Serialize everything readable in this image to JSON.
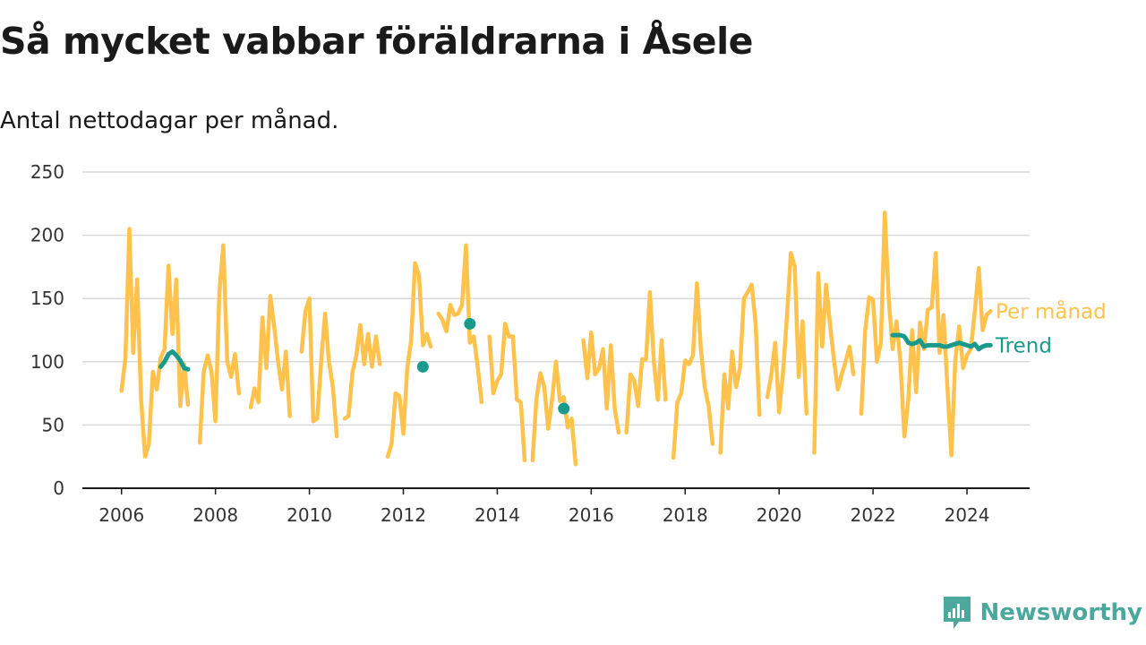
{
  "header": {
    "title": "Så mycket vabbar föräldrarna i Åsele",
    "subtitle": "Antal nettodagar per månad."
  },
  "brand": {
    "name": "Newsworthy",
    "color": "#4aa89c"
  },
  "chart_data": {
    "type": "line",
    "x_type": "date",
    "xlim": [
      "2005-03",
      "2025-05"
    ],
    "ylim": [
      0,
      250
    ],
    "yticks": [
      0,
      50,
      100,
      150,
      200,
      250
    ],
    "xticks": [
      "2006",
      "2008",
      "2010",
      "2012",
      "2014",
      "2016",
      "2018",
      "2020",
      "2022",
      "2024"
    ],
    "grid": true,
    "legend": "labels at line ends, right",
    "series": [
      {
        "name": "Per månad",
        "color": "#ffc34d",
        "style": "line",
        "segments": [
          [
            [
              "2006-01",
              77
            ],
            [
              "2006-02",
              103
            ],
            [
              "2006-03",
              205
            ],
            [
              "2006-04",
              107
            ],
            [
              "2006-05",
              165
            ],
            [
              "2006-06",
              70
            ],
            [
              "2006-07",
              25
            ],
            [
              "2006-08",
              35
            ],
            [
              "2006-09",
              92
            ],
            [
              "2006-10",
              78
            ],
            [
              "2006-11",
              103
            ],
            [
              "2006-12",
              110
            ],
            [
              "2007-01",
              176
            ],
            [
              "2007-02",
              122
            ],
            [
              "2007-03",
              165
            ],
            [
              "2007-04",
              65
            ],
            [
              "2007-05",
              98
            ],
            [
              "2007-06",
              66
            ]
          ],
          [
            [
              "2007-09",
              36
            ],
            [
              "2007-10",
              92
            ],
            [
              "2007-11",
              105
            ],
            [
              "2007-12",
              92
            ],
            [
              "2008-01",
              53
            ],
            [
              "2008-02",
              155
            ],
            [
              "2008-03",
              192
            ],
            [
              "2008-04",
              100
            ],
            [
              "2008-05",
              88
            ],
            [
              "2008-06",
              106
            ],
            [
              "2008-07",
              75
            ]
          ],
          [
            [
              "2008-10",
              64
            ],
            [
              "2008-11",
              79
            ],
            [
              "2008-12",
              68
            ],
            [
              "2009-01",
              135
            ],
            [
              "2009-02",
              95
            ],
            [
              "2009-03",
              152
            ],
            [
              "2009-04",
              128
            ],
            [
              "2009-05",
              100
            ],
            [
              "2009-06",
              78
            ],
            [
              "2009-07",
              108
            ],
            [
              "2009-08",
              57
            ]
          ],
          [
            [
              "2009-11",
              108
            ],
            [
              "2009-12",
              140
            ],
            [
              "2010-01",
              150
            ],
            [
              "2010-02",
              53
            ],
            [
              "2010-03",
              55
            ],
            [
              "2010-04",
              100
            ],
            [
              "2010-05",
              138
            ],
            [
              "2010-06",
              100
            ],
            [
              "2010-07",
              80
            ],
            [
              "2010-08",
              41
            ]
          ],
          [
            [
              "2010-10",
              55
            ],
            [
              "2010-11",
              57
            ],
            [
              "2010-12",
              92
            ],
            [
              "2011-01",
              105
            ],
            [
              "2011-02",
              129
            ],
            [
              "2011-03",
              98
            ],
            [
              "2011-04",
              122
            ],
            [
              "2011-05",
              96
            ],
            [
              "2011-06",
              120
            ],
            [
              "2011-07",
              98
            ]
          ],
          [
            [
              "2011-09",
              25
            ],
            [
              "2011-10",
              35
            ],
            [
              "2011-11",
              75
            ],
            [
              "2011-12",
              73
            ],
            [
              "2012-01",
              43
            ],
            [
              "2012-02",
              95
            ],
            [
              "2012-03",
              117
            ],
            [
              "2012-04",
              178
            ],
            [
              "2012-05",
              168
            ],
            [
              "2012-06",
              113
            ],
            [
              "2012-07",
              122
            ],
            [
              "2012-08",
              112
            ]
          ],
          [
            [
              "2012-10",
              138
            ],
            [
              "2012-11",
              133
            ],
            [
              "2012-12",
              124
            ],
            [
              "2013-01",
              145
            ],
            [
              "2013-02",
              137
            ],
            [
              "2013-03",
              138
            ],
            [
              "2013-04",
              145
            ],
            [
              "2013-05",
              192
            ],
            [
              "2013-06",
              115
            ],
            [
              "2013-07",
              120
            ],
            [
              "2013-08",
              96
            ],
            [
              "2013-09",
              68
            ]
          ],
          [
            [
              "2013-11",
              120
            ],
            [
              "2013-12",
              75
            ],
            [
              "2014-01",
              85
            ],
            [
              "2014-02",
              90
            ],
            [
              "2014-03",
              130
            ],
            [
              "2014-04",
              120
            ],
            [
              "2014-05",
              120
            ],
            [
              "2014-06",
              70
            ],
            [
              "2014-07",
              68
            ],
            [
              "2014-08",
              22
            ]
          ],
          [
            [
              "2014-10",
              22
            ],
            [
              "2014-11",
              70
            ],
            [
              "2014-12",
              91
            ],
            [
              "2015-01",
              80
            ],
            [
              "2015-02",
              47
            ],
            [
              "2015-03",
              70
            ],
            [
              "2015-04",
              100
            ],
            [
              "2015-05",
              69
            ],
            [
              "2015-06",
              72
            ],
            [
              "2015-07",
              48
            ],
            [
              "2015-08",
              55
            ],
            [
              "2015-09",
              19
            ]
          ],
          [
            [
              "2015-11",
              117
            ],
            [
              "2015-12",
              87
            ],
            [
              "2016-01",
              123
            ],
            [
              "2016-02",
              90
            ],
            [
              "2016-03",
              95
            ],
            [
              "2016-04",
              110
            ],
            [
              "2016-05",
              63
            ],
            [
              "2016-06",
              113
            ],
            [
              "2016-07",
              63
            ],
            [
              "2016-08",
              44
            ]
          ],
          [
            [
              "2016-10",
              44
            ],
            [
              "2016-11",
              90
            ],
            [
              "2016-12",
              85
            ],
            [
              "2017-01",
              65
            ],
            [
              "2017-02",
              102
            ],
            [
              "2017-03",
              102
            ],
            [
              "2017-04",
              155
            ],
            [
              "2017-05",
              100
            ],
            [
              "2017-06",
              70
            ],
            [
              "2017-07",
              117
            ],
            [
              "2017-08",
              70
            ]
          ],
          [
            [
              "2017-10",
              24
            ],
            [
              "2017-11",
              68
            ],
            [
              "2017-12",
              75
            ],
            [
              "2018-01",
              101
            ],
            [
              "2018-02",
              98
            ],
            [
              "2018-03",
              105
            ],
            [
              "2018-04",
              162
            ],
            [
              "2018-05",
              110
            ],
            [
              "2018-06",
              80
            ],
            [
              "2018-07",
              65
            ],
            [
              "2018-08",
              35
            ]
          ],
          [
            [
              "2018-10",
              28
            ],
            [
              "2018-11",
              90
            ],
            [
              "2018-12",
              63
            ],
            [
              "2019-01",
              108
            ],
            [
              "2019-02",
              80
            ],
            [
              "2019-03",
              95
            ],
            [
              "2019-04",
              150
            ],
            [
              "2019-05",
              155
            ],
            [
              "2019-06",
              161
            ],
            [
              "2019-07",
              130
            ],
            [
              "2019-08",
              58
            ]
          ],
          [
            [
              "2019-10",
              72
            ],
            [
              "2019-11",
              90
            ],
            [
              "2019-12",
              115
            ],
            [
              "2020-01",
              60
            ],
            [
              "2020-02",
              92
            ],
            [
              "2020-03",
              135
            ],
            [
              "2020-04",
              186
            ],
            [
              "2020-05",
              175
            ],
            [
              "2020-06",
              88
            ],
            [
              "2020-07",
              132
            ],
            [
              "2020-08",
              59
            ]
          ],
          [
            [
              "2020-10",
              28
            ],
            [
              "2020-11",
              170
            ],
            [
              "2020-12",
              112
            ],
            [
              "2021-01",
              161
            ],
            [
              "2021-02",
              130
            ],
            [
              "2021-03",
              102
            ],
            [
              "2021-04",
              78
            ],
            [
              "2021-05",
              90
            ],
            [
              "2021-06",
              100
            ],
            [
              "2021-07",
              112
            ],
            [
              "2021-08",
              90
            ]
          ],
          [
            [
              "2021-10",
              59
            ],
            [
              "2021-11",
              125
            ],
            [
              "2021-12",
              151
            ],
            [
              "2022-01",
              149
            ],
            [
              "2022-02",
              100
            ],
            [
              "2022-03",
              115
            ],
            [
              "2022-04",
              218
            ],
            [
              "2022-05",
              150
            ],
            [
              "2022-06",
              110
            ],
            [
              "2022-07",
              132
            ],
            [
              "2022-08",
              100
            ],
            [
              "2022-09",
              41
            ],
            [
              "2022-10",
              70
            ],
            [
              "2022-11",
              125
            ],
            [
              "2022-12",
              76
            ],
            [
              "2023-01",
              131
            ],
            [
              "2023-02",
              110
            ],
            [
              "2023-03",
              141
            ],
            [
              "2023-04",
              143
            ],
            [
              "2023-05",
              186
            ],
            [
              "2023-06",
              107
            ],
            [
              "2023-07",
              137
            ],
            [
              "2023-08",
              80
            ],
            [
              "2023-09",
              26
            ],
            [
              "2023-10",
              100
            ],
            [
              "2023-11",
              128
            ],
            [
              "2023-12",
              95
            ],
            [
              "2024-01",
              105
            ],
            [
              "2024-02",
              110
            ],
            [
              "2024-03",
              140
            ],
            [
              "2024-04",
              174
            ],
            [
              "2024-05",
              125
            ],
            [
              "2024-06",
              137
            ],
            [
              "2024-07",
              140
            ]
          ]
        ]
      },
      {
        "name": "Trend",
        "color": "#1a9a8c",
        "style": "line-with-points",
        "segments": [
          [
            [
              "2006-11",
              96
            ],
            [
              "2006-12",
              100
            ],
            [
              "2007-01",
              106
            ],
            [
              "2007-02",
              108
            ],
            [
              "2007-03",
              105
            ],
            [
              "2007-04",
              101
            ],
            [
              "2007-05",
              95
            ],
            [
              "2007-06",
              94
            ]
          ],
          [
            [
              "2012-06",
              96
            ]
          ],
          [
            [
              "2013-06",
              130
            ]
          ],
          [
            [
              "2015-06",
              63
            ]
          ],
          [
            [
              "2022-06",
              121
            ],
            [
              "2022-07",
              121
            ],
            [
              "2022-08",
              121
            ],
            [
              "2022-09",
              120
            ],
            [
              "2022-10",
              115
            ],
            [
              "2022-11",
              114
            ],
            [
              "2022-12",
              115
            ],
            [
              "2023-01",
              117
            ],
            [
              "2023-02",
              112
            ],
            [
              "2023-03",
              113
            ],
            [
              "2023-04",
              113
            ],
            [
              "2023-05",
              113
            ],
            [
              "2023-06",
              113
            ],
            [
              "2023-07",
              112
            ],
            [
              "2023-08",
              112
            ],
            [
              "2023-09",
              113
            ],
            [
              "2023-10",
              114
            ],
            [
              "2023-11",
              115
            ],
            [
              "2023-12",
              114
            ],
            [
              "2024-01",
              113
            ],
            [
              "2024-02",
              112
            ],
            [
              "2024-03",
              114
            ],
            [
              "2024-04",
              110
            ],
            [
              "2024-05",
              112
            ],
            [
              "2024-06",
              113
            ],
            [
              "2024-07",
              113
            ]
          ]
        ]
      }
    ]
  }
}
